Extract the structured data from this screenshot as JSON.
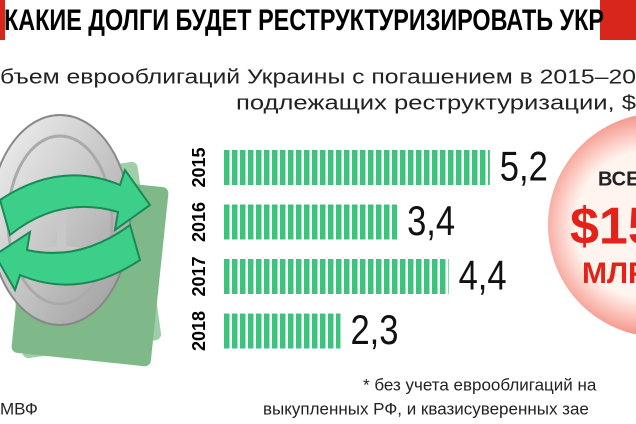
{
  "chart_data": {
    "type": "bar",
    "orientation": "horizontal",
    "title": "КАКИЕ ДОЛГИ БУДЕТ РЕСТРУКТУРИЗИРОВАТЬ УКР",
    "subtitle": [
      "бъем еврооблигаций Украины с погашением в 2015–20",
      "подлежащих реструктуризации, $"
    ],
    "categories": [
      "2015",
      "2016",
      "2017",
      "2018"
    ],
    "values": [
      5.2,
      3.4,
      4.4,
      2.3
    ],
    "value_labels": [
      "5,2",
      "3,4",
      "4,4",
      "2,3"
    ],
    "color": "#3cc47c",
    "annotations": [
      "ВСЕ",
      "$15",
      "МЛР"
    ],
    "footnote": [
      "* без учета еврооблигаций на",
      "выкупленных РФ, и квазисуверенных зае"
    ],
    "source": "МВФ"
  }
}
